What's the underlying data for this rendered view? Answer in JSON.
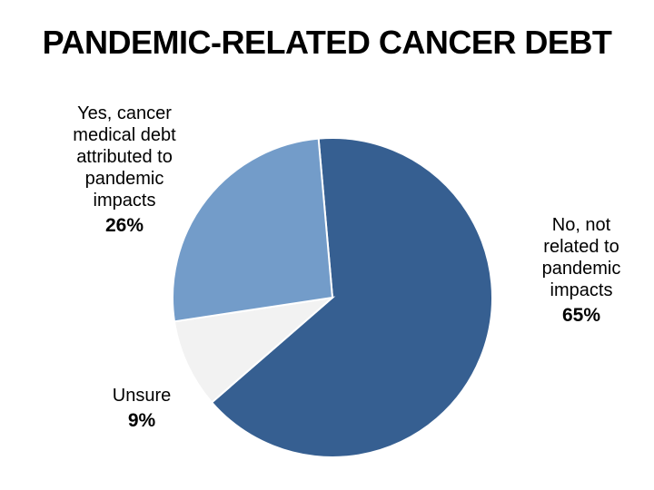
{
  "chart_data": {
    "type": "pie",
    "title": "PANDEMIC-RELATED CANCER DEBT",
    "slices": [
      {
        "label": "No, not related to pandemic impacts",
        "value": 65,
        "value_label": "65%",
        "color": "#365f91"
      },
      {
        "label": "Unsure",
        "value": 9,
        "value_label": "9%",
        "color": "#f2f2f2"
      },
      {
        "label": "Yes, cancer medical debt attributed to pandemic impacts",
        "value": 26,
        "value_label": "26%",
        "color": "#739cc9"
      }
    ],
    "label_lines": [
      [
        "No, not",
        "related to",
        "pandemic",
        "impacts"
      ],
      [
        "Unsure"
      ],
      [
        "Yes, cancer",
        "medical debt",
        "attributed to",
        "pandemic",
        "impacts"
      ]
    ],
    "start_angle_deg": -5,
    "direction": "clockwise",
    "slice_border_color": "#ffffff",
    "legend": "none"
  }
}
